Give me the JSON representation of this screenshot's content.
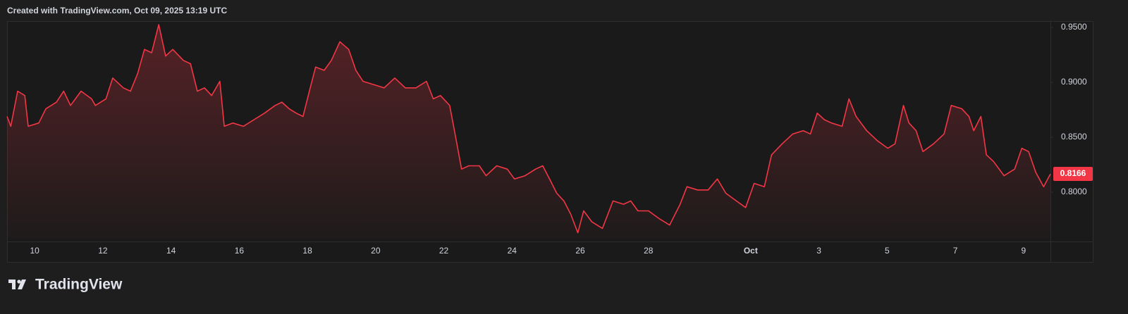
{
  "chart_data": {
    "type": "area",
    "title": "Created with TradingView.com, Oct 09, 2025 13:19 UTC",
    "brand": "TradingView",
    "color": "#f23645",
    "grid": false,
    "x": [
      9.19,
      9.3,
      9.5,
      9.71,
      9.81,
      10.12,
      10.33,
      10.64,
      10.85,
      11.05,
      11.36,
      11.67,
      11.78,
      12.09,
      12.29,
      12.6,
      12.81,
      13.02,
      13.22,
      13.43,
      13.64,
      13.84,
      14.05,
      14.36,
      14.57,
      14.77,
      14.98,
      15.19,
      15.43,
      15.56,
      15.81,
      16.12,
      16.43,
      16.74,
      17.05,
      17.25,
      17.46,
      17.67,
      17.87,
      18.08,
      18.24,
      18.49,
      18.7,
      18.95,
      19.21,
      19.42,
      19.63,
      19.94,
      20.25,
      20.56,
      20.87,
      21.18,
      21.49,
      21.69,
      21.9,
      22.17,
      22.31,
      22.52,
      22.73,
      23.04,
      23.24,
      23.55,
      23.86,
      24.07,
      24.38,
      24.69,
      24.9,
      25.1,
      25.31,
      25.52,
      25.72,
      25.93,
      26.1,
      26.34,
      26.65,
      26.96,
      27.27,
      27.48,
      27.69,
      28.0,
      28.31,
      28.62,
      28.93,
      29.13,
      29.44,
      29.75,
      30.02,
      30.27,
      30.58,
      30.85,
      31.1,
      31.4,
      31.61,
      31.92,
      32.23,
      32.54,
      32.75,
      32.95,
      33.16,
      33.37,
      33.68,
      33.88,
      34.09,
      34.4,
      34.71,
      35.02,
      35.23,
      35.48,
      35.64,
      35.85,
      36.05,
      36.36,
      36.67,
      36.88,
      37.19,
      37.4,
      37.54,
      37.75,
      37.91,
      38.12,
      38.43,
      38.74,
      38.95,
      39.15,
      39.36,
      39.59,
      39.79
    ],
    "values": [
      0.869,
      0.86,
      0.892,
      0.888,
      0.86,
      0.863,
      0.876,
      0.882,
      0.892,
      0.879,
      0.892,
      0.885,
      0.879,
      0.885,
      0.904,
      0.895,
      0.892,
      0.908,
      0.93,
      0.927,
      0.9526,
      0.924,
      0.93,
      0.92,
      0.917,
      0.892,
      0.895,
      0.888,
      0.901,
      0.86,
      0.863,
      0.86,
      0.866,
      0.872,
      0.879,
      0.882,
      0.876,
      0.872,
      0.869,
      0.895,
      0.914,
      0.911,
      0.92,
      0.937,
      0.93,
      0.911,
      0.901,
      0.898,
      0.895,
      0.904,
      0.895,
      0.895,
      0.901,
      0.885,
      0.888,
      0.879,
      0.856,
      0.821,
      0.824,
      0.824,
      0.815,
      0.824,
      0.821,
      0.812,
      0.815,
      0.821,
      0.824,
      0.812,
      0.799,
      0.792,
      0.78,
      0.763,
      0.783,
      0.773,
      0.767,
      0.792,
      0.789,
      0.792,
      0.783,
      0.783,
      0.776,
      0.77,
      0.789,
      0.805,
      0.802,
      0.802,
      0.812,
      0.799,
      0.792,
      0.786,
      0.808,
      0.805,
      0.834,
      0.844,
      0.853,
      0.856,
      0.853,
      0.872,
      0.866,
      0.863,
      0.86,
      0.885,
      0.869,
      0.856,
      0.847,
      0.84,
      0.844,
      0.879,
      0.863,
      0.856,
      0.837,
      0.844,
      0.853,
      0.879,
      0.876,
      0.869,
      0.856,
      0.869,
      0.834,
      0.828,
      0.815,
      0.821,
      0.84,
      0.837,
      0.818,
      0.805,
      0.8166
    ],
    "xlim": [
      9.19,
      39.79
    ],
    "xticks": [
      10,
      12,
      14,
      16,
      18,
      20,
      22,
      24,
      26,
      28,
      {
        "value": 31,
        "label": "Oct"
      },
      {
        "value": 33,
        "label": "3"
      },
      {
        "value": 35,
        "label": "5"
      },
      {
        "value": 37,
        "label": "7"
      },
      {
        "value": 39,
        "label": "9"
      }
    ],
    "ylim": [
      0.757,
      0.9558
    ],
    "yticks": [
      {
        "value": 0.95,
        "label": "0.9500"
      },
      {
        "value": 0.9,
        "label": "0.9000"
      },
      {
        "value": 0.85,
        "label": "0.8500"
      },
      {
        "value": 0.8,
        "label": "0.8000"
      }
    ]
  }
}
